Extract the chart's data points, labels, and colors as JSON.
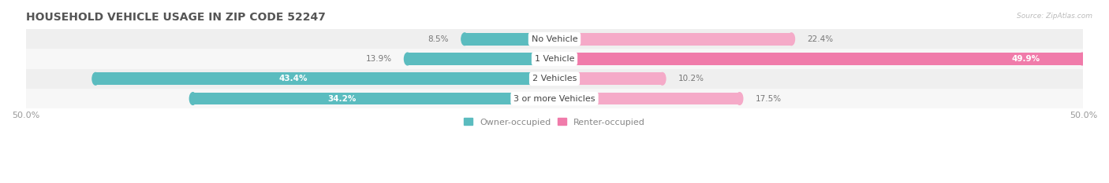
{
  "title": "HOUSEHOLD VEHICLE USAGE IN ZIP CODE 52247",
  "source": "Source: ZipAtlas.com",
  "categories": [
    "No Vehicle",
    "1 Vehicle",
    "2 Vehicles",
    "3 or more Vehicles"
  ],
  "owner_values": [
    8.5,
    13.9,
    43.4,
    34.2
  ],
  "renter_values": [
    22.4,
    49.9,
    10.2,
    17.5
  ],
  "owner_color": "#5bbcbf",
  "renter_color_small": "#f5aac8",
  "renter_color_large": "#f07baa",
  "bar_bg_even": "#efefef",
  "bar_bg_odd": "#f7f7f7",
  "label_color_inside": "#ffffff",
  "label_color_outside": "#888888",
  "x_min": -50.0,
  "x_max": 50.0,
  "x_tick_labels": [
    "50.0%",
    "50.0%"
  ],
  "title_fontsize": 10,
  "axis_fontsize": 8,
  "cat_label_fontsize": 8,
  "value_fontsize": 7.5,
  "legend_fontsize": 8,
  "bar_height": 0.62,
  "background_color": "#ffffff",
  "owner_threshold": 15,
  "renter_threshold": 30,
  "renter_large_threshold": 30
}
